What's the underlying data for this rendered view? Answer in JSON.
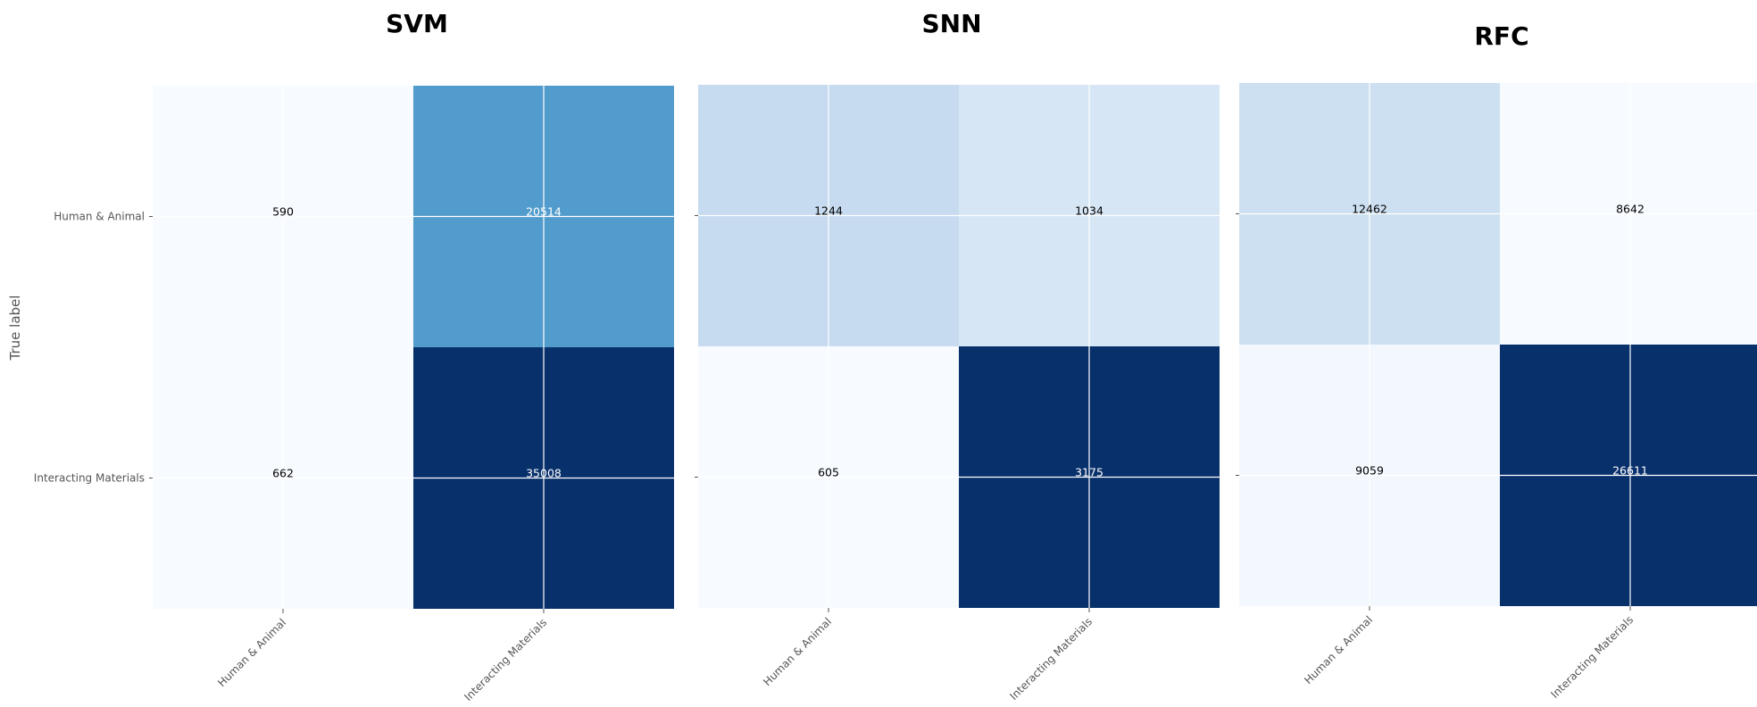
{
  "chart_data": [
    {
      "type": "heatmap",
      "title": "SVM",
      "ylabel": "True label",
      "xlabel": "",
      "row_labels": [
        "Human & Animal",
        "Interacting Materials"
      ],
      "col_labels": [
        "Human & Animal",
        "Interacting Materials"
      ],
      "values": [
        [
          590,
          20514
        ],
        [
          662,
          35008
        ]
      ],
      "colormap": "Blues",
      "grid": true
    },
    {
      "type": "heatmap",
      "title": "SNN",
      "ylabel": "",
      "xlabel": "",
      "row_labels": [
        "",
        ""
      ],
      "col_labels": [
        "Human & Animal",
        "Interacting Materials"
      ],
      "values": [
        [
          1244,
          1034
        ],
        [
          605,
          3175
        ]
      ],
      "colormap": "Blues",
      "grid": true
    },
    {
      "type": "heatmap",
      "title": "RFC",
      "ylabel": "",
      "xlabel": "",
      "row_labels": [
        "",
        ""
      ],
      "col_labels": [
        "Human & Animal",
        "Interacting Materials"
      ],
      "values": [
        [
          12462,
          8642
        ],
        [
          9059,
          26611
        ]
      ],
      "colormap": "Blues",
      "grid": true
    }
  ]
}
